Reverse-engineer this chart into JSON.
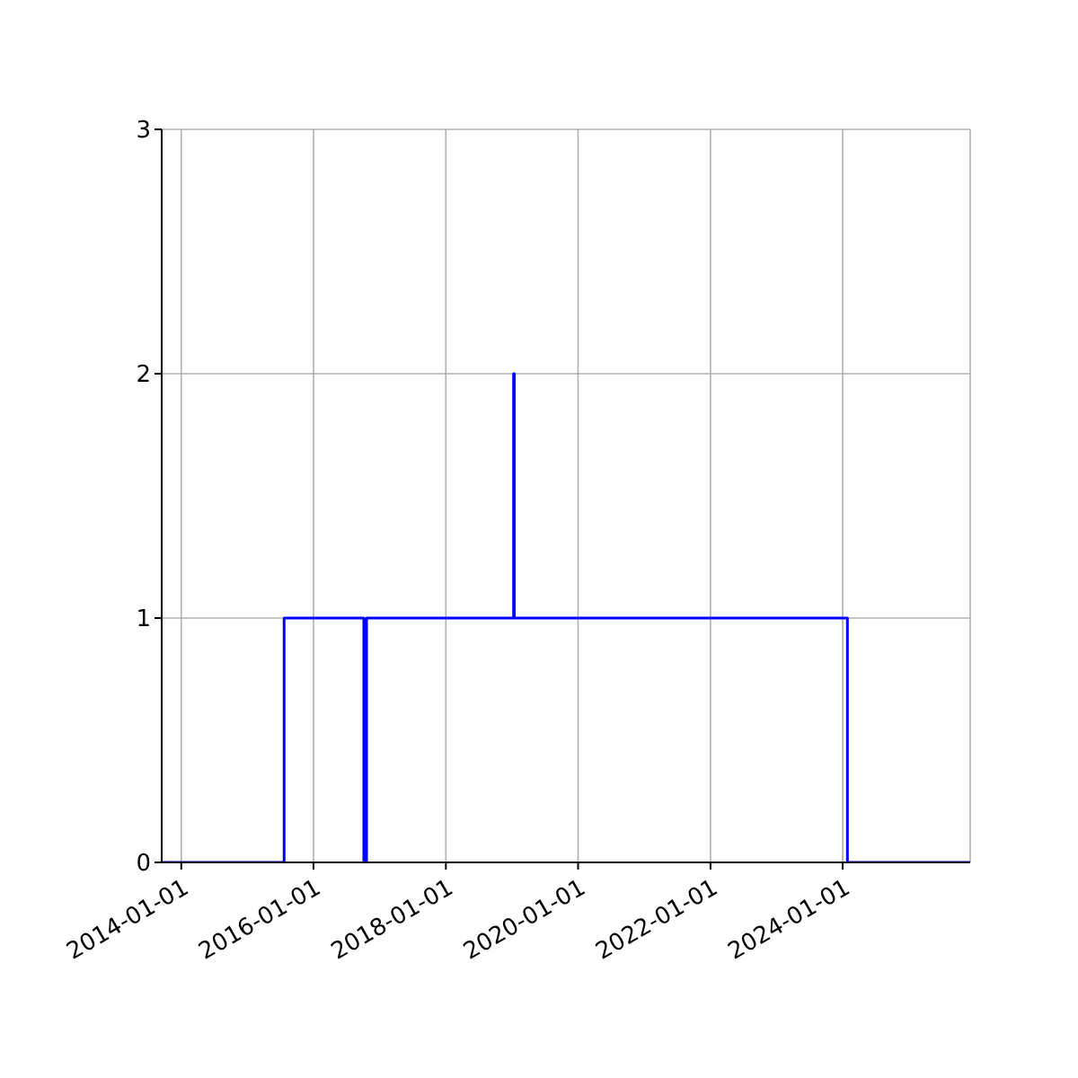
{
  "chart_data": {
    "type": "step",
    "x": [
      "2013-09-15",
      "2015-07-23",
      "2016-10-05",
      "2016-10-20",
      "2019-01-10",
      "2019-01-14",
      "2024-01-27",
      "2025-12-05"
    ],
    "series": [
      {
        "color": "#0000ff",
        "values": [
          0,
          1,
          0,
          1,
          2,
          1,
          0,
          0
        ]
      }
    ],
    "xlim": [
      "2013-09-15",
      "2025-12-05"
    ],
    "xticks": [
      "2014-01-01",
      "2016-01-01",
      "2018-01-01",
      "2020-01-01",
      "2022-01-01",
      "2024-01-01"
    ],
    "ylim": [
      0,
      3
    ],
    "yticks": [
      0,
      1,
      2,
      3
    ],
    "grid": true,
    "legend": false,
    "marker": "none",
    "line_style": "solid"
  }
}
